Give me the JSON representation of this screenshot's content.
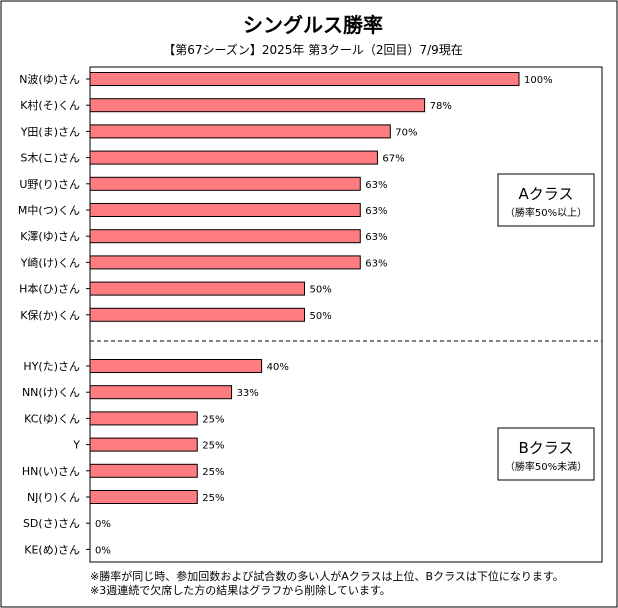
{
  "title": "シングルス勝率",
  "subtitle": "【第67シーズン】2025年 第3クール（2回目）7/9現在",
  "chart_data": {
    "type": "bar",
    "orientation": "horizontal",
    "xlim": [
      0,
      100
    ],
    "grid": false,
    "bar_color": "#ff7c80",
    "categories": [
      "N波(ゆ)さん",
      "K村(そ)くん",
      "Y田(ま)さん",
      "S木(こ)さん",
      "U野(り)さん",
      "M中(つ)くん",
      "K澤(ゆ)さん",
      "Y崎(け)くん",
      "H本(ひ)さん",
      "K保(か)くん",
      "HY(た)さん",
      "NN(け)くん",
      "KC(ゆ)くん",
      "Y",
      "HN(い)さん",
      "NJ(り)くん",
      "SD(さ)さん",
      "KE(め)さん"
    ],
    "values": [
      100,
      78,
      70,
      67,
      63,
      63,
      63,
      63,
      50,
      50,
      40,
      33,
      25,
      25,
      25,
      25,
      0,
      0
    ],
    "value_labels": [
      "100%",
      "78%",
      "70%",
      "67%",
      "63%",
      "63%",
      "63%",
      "63%",
      "50%",
      "50%",
      "40%",
      "33%",
      "25%",
      "25%",
      "25%",
      "25%",
      "0%",
      "0%"
    ],
    "groups": [
      {
        "name": "Aクラス",
        "note": "（勝率50%以上）",
        "count": 10
      },
      {
        "name": "Bクラス",
        "note": "（勝率50%未満）",
        "count": 8
      }
    ]
  },
  "footnotes": [
    "※勝率が同じ時、参加回数および試合数の多い人がAクラスは上位、Bクラスは下位になります。",
    "※3週連続で欠席した方の結果はグラフから削除しています。"
  ]
}
